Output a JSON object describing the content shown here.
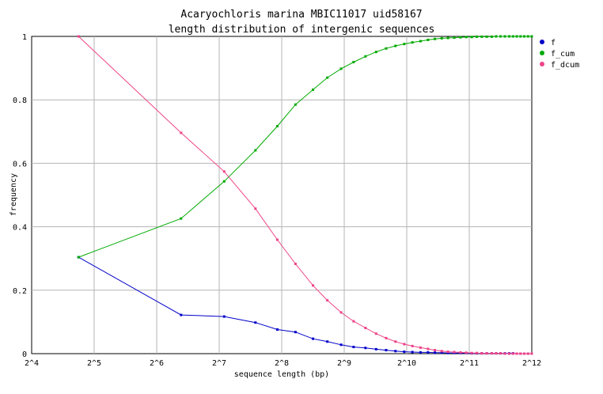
{
  "chart_data": {
    "type": "line",
    "title": "Acaryochloris marina MBIC11017 uid58167",
    "subtitle": "length distribution of intergenic sequences",
    "xlabel": "sequence length (bp)",
    "ylabel": "frequency",
    "x_scale": "log2",
    "xlim": [
      4,
      12
    ],
    "ylim": [
      0,
      1
    ],
    "x_ticks": [
      4,
      5,
      6,
      7,
      8,
      9,
      10,
      11,
      12
    ],
    "x_tick_labels": [
      "2^4",
      "2^5",
      "2^6",
      "2^7",
      "2^8",
      "2^9",
      "2^10",
      "2^11",
      "2^12"
    ],
    "y_ticks": [
      0,
      0.2,
      0.4,
      0.6,
      0.8,
      1
    ],
    "y_tick_labels": [
      "0",
      "0.2",
      "0.4",
      "0.6",
      "0.8",
      "1"
    ],
    "grid": true,
    "legend_position": "top-right",
    "series": [
      {
        "name": "f",
        "color": "#0000cc",
        "x": [
          4.75,
          6.39,
          7.08,
          7.58,
          7.93,
          8.22,
          8.5,
          8.73,
          8.95,
          9.15,
          9.34,
          9.51,
          9.67,
          9.82,
          9.96,
          10.09,
          10.22,
          10.34,
          10.45,
          10.56,
          10.66,
          10.76,
          10.86,
          10.95,
          11.04,
          11.12,
          11.2,
          11.28,
          11.36,
          11.43,
          11.5,
          11.57,
          11.64,
          11.7,
          11.76,
          11.82,
          11.88,
          11.94,
          12.0
        ],
        "y": [
          0.304,
          0.122,
          0.117,
          0.098,
          0.076,
          0.068,
          0.047,
          0.038,
          0.028,
          0.021,
          0.018,
          0.014,
          0.011,
          0.008,
          0.006,
          0.005,
          0.004,
          0.004,
          0.003,
          0.003,
          0.002,
          0.002,
          0.002,
          0.002,
          0.001,
          0.001,
          0.001,
          0.001,
          0.001,
          0.001,
          0.001,
          0.001,
          0.001,
          0.001,
          0.0,
          0.0,
          0.0,
          0.0,
          0.0
        ]
      },
      {
        "name": "f_cum",
        "color": "#00aa00",
        "x": [
          4.75,
          6.39,
          7.08,
          7.58,
          7.93,
          8.22,
          8.5,
          8.73,
          8.95,
          9.15,
          9.34,
          9.51,
          9.67,
          9.82,
          9.96,
          10.09,
          10.22,
          10.34,
          10.45,
          10.56,
          10.66,
          10.76,
          10.86,
          10.95,
          11.04,
          11.12,
          11.2,
          11.28,
          11.36,
          11.43,
          11.5,
          11.57,
          11.64,
          11.7,
          11.76,
          11.82,
          11.88,
          11.94,
          12.0
        ],
        "y": [
          0.304,
          0.426,
          0.543,
          0.641,
          0.717,
          0.785,
          0.832,
          0.87,
          0.898,
          0.919,
          0.937,
          0.951,
          0.962,
          0.97,
          0.976,
          0.981,
          0.985,
          0.989,
          0.992,
          0.994,
          0.995,
          0.996,
          0.997,
          0.998,
          0.998,
          0.999,
          0.999,
          0.999,
          0.999,
          1.0,
          1.0,
          1.0,
          1.0,
          1.0,
          1.0,
          1.0,
          1.0,
          1.0,
          1.0
        ]
      },
      {
        "name": "f_dcum",
        "color": "#ee4488",
        "x": [
          4.75,
          6.39,
          7.08,
          7.58,
          7.93,
          8.22,
          8.5,
          8.73,
          8.95,
          9.15,
          9.34,
          9.51,
          9.67,
          9.82,
          9.96,
          10.09,
          10.22,
          10.34,
          10.45,
          10.56,
          10.66,
          10.76,
          10.86,
          10.95,
          11.04,
          11.12,
          11.2,
          11.28,
          11.36,
          11.43,
          11.5,
          11.57,
          11.64,
          11.7,
          11.76,
          11.82,
          11.88,
          11.94,
          12.0
        ],
        "y": [
          1.0,
          0.696,
          0.574,
          0.457,
          0.359,
          0.283,
          0.215,
          0.168,
          0.13,
          0.102,
          0.081,
          0.063,
          0.049,
          0.038,
          0.03,
          0.024,
          0.019,
          0.015,
          0.011,
          0.008,
          0.006,
          0.005,
          0.004,
          0.003,
          0.002,
          0.002,
          0.001,
          0.001,
          0.001,
          0.001,
          0.001,
          0.0,
          0.0,
          0.0,
          0.0,
          0.0,
          0.0,
          0.0,
          0.0
        ]
      }
    ]
  }
}
